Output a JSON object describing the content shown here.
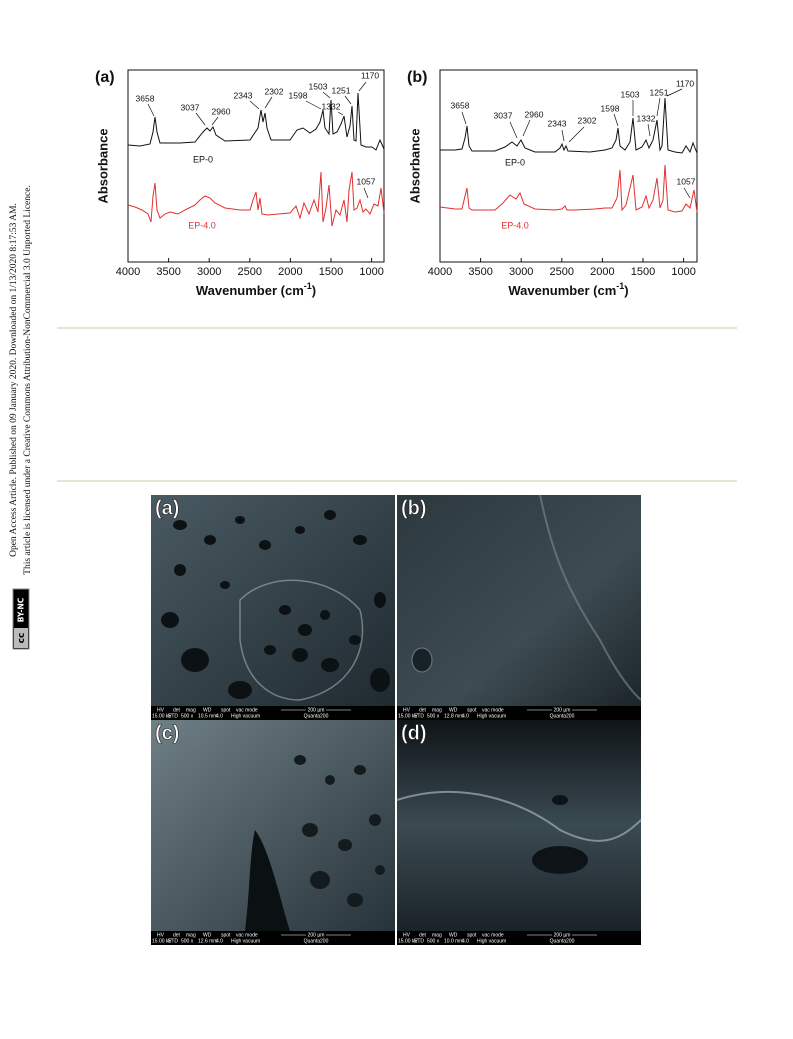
{
  "sidebar": {
    "line1": "Open Access Article. Published on 09 January 2020. Downloaded on 1/13/2020 8:17:53 AM.",
    "line2": "This article is licensed under a Creative Commons Attribution-NonCommercial 3.0 Unported Licence.",
    "badge": [
      "cc",
      "BY-NC"
    ]
  },
  "figure1": {
    "panels": [
      {
        "label": "(a)",
        "y_axis_label": "Absorbance",
        "x_axis_label": "Wavenumber (cm",
        "x_axis_label_sup": "-1",
        "x_axis_label_end": ")",
        "x_ticks": [
          "4000",
          "3500",
          "3000",
          "2500",
          "2000",
          "1500",
          "1000"
        ],
        "peak_labels": [
          "3658",
          "3037",
          "2960",
          "2343",
          "2302",
          "1598",
          "1503",
          "1332",
          "1251",
          "1170",
          "1057"
        ],
        "series_labels": [
          "EP-0",
          "EP-4.0"
        ]
      },
      {
        "label": "(b)",
        "y_axis_label": "Absorbance",
        "x_axis_label": "Wavenumber (cm",
        "x_axis_label_sup": "-1",
        "x_axis_label_end": ")",
        "x_ticks": [
          "4000",
          "3500",
          "3000",
          "2500",
          "2000",
          "1500",
          "1000"
        ],
        "peak_labels": [
          "3658",
          "3037",
          "2960",
          "2343",
          "2302",
          "1598",
          "1503",
          "1332",
          "1251",
          "1170",
          "1057"
        ],
        "series_labels": [
          "EP-0",
          "EP-4.0"
        ]
      }
    ]
  },
  "figure2": {
    "info_headers": [
      "HV",
      "det",
      "mag",
      "WD",
      "spot",
      "vac mode",
      "200 µm"
    ],
    "panels": [
      {
        "label": "(a)",
        "info_values": [
          "15.00 kV",
          "ETD",
          "500 x",
          "10.5 mm",
          "4.0",
          "High vacuum",
          "Quanta200"
        ]
      },
      {
        "label": "(b)",
        "info_values": [
          "15.00 kV",
          "ETD",
          "500 x",
          "12.8 mm",
          "4.0",
          "High vacuum",
          "Quanta200"
        ]
      },
      {
        "label": "(c)",
        "info_values": [
          "15.00 kV",
          "ETD",
          "500 x",
          "12.6 mm",
          "4.0",
          "High vacuum",
          "Quanta200"
        ]
      },
      {
        "label": "(d)",
        "info_values": [
          "15.00 kV",
          "ETD",
          "500 x",
          "10.0 mm",
          "4.0",
          "High vacuum",
          "Quanta200"
        ]
      }
    ]
  }
}
